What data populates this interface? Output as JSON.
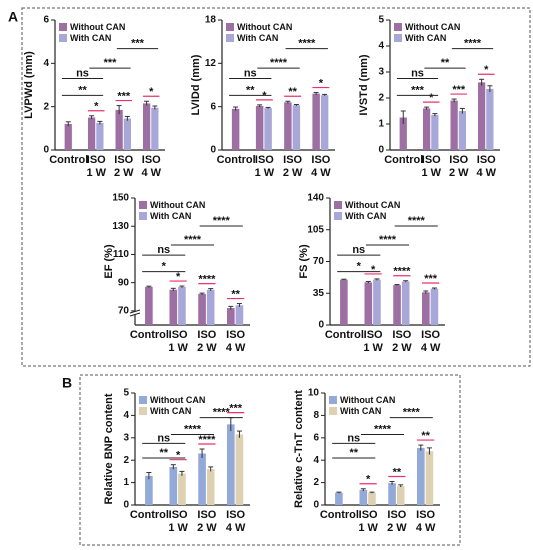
{
  "panels": [
    "A",
    "B"
  ],
  "chart_data": [
    {
      "type": "bar",
      "ylabel": "LVPWd (mm)",
      "ylim": [
        0,
        6
      ],
      "yticks": [
        0,
        2,
        4,
        6
      ],
      "categories": [
        [
          "Control"
        ],
        [
          "ISO",
          "1 W"
        ],
        [
          "ISO",
          "2 W"
        ],
        [
          "ISO",
          "4 W"
        ]
      ],
      "series": [
        {
          "name": "Without CAN",
          "color": "#9d6fa3",
          "values": [
            1.2,
            1.5,
            1.85,
            2.15
          ],
          "errors": [
            0.1,
            0.08,
            0.2,
            0.1
          ]
        },
        {
          "name": "With CAN",
          "color": "#a8a8d8",
          "values": [
            null,
            1.25,
            1.45,
            1.95
          ],
          "errors": [
            null,
            0.07,
            0.1,
            0.08
          ]
        }
      ],
      "brackets": [
        "**",
        "ns",
        "***",
        "***"
      ],
      "pair_marks": [
        "*",
        "***",
        "*"
      ]
    },
    {
      "type": "bar",
      "ylabel": "LVIDd (mm)",
      "ylim": [
        0,
        18
      ],
      "yticks": [
        0,
        6,
        12,
        18
      ],
      "categories": [
        [
          "Control"
        ],
        [
          "ISO",
          "1 W"
        ],
        [
          "ISO",
          "2 W"
        ],
        [
          "ISO",
          "4 W"
        ]
      ],
      "series": [
        {
          "name": "Without CAN",
          "color": "#9d6fa3",
          "values": [
            5.7,
            6.1,
            6.6,
            7.8
          ],
          "errors": [
            0.25,
            0.15,
            0.15,
            0.15
          ]
        },
        {
          "name": "With CAN",
          "color": "#a8a8d8",
          "values": [
            null,
            5.8,
            6.2,
            7.6
          ],
          "errors": [
            null,
            0.1,
            0.1,
            0.1
          ]
        }
      ],
      "brackets": [
        "**",
        "ns",
        "****",
        "****"
      ],
      "pair_marks": [
        "*",
        "**",
        "*"
      ]
    },
    {
      "type": "bar",
      "ylabel": "IVSTd (mm)",
      "ylim": [
        0,
        5
      ],
      "yticks": [
        0,
        1,
        2,
        3,
        4,
        5
      ],
      "categories": [
        [
          "Control"
        ],
        [
          "ISO",
          "1 W"
        ],
        [
          "ISO",
          "2 W"
        ],
        [
          "ISO",
          "4 W"
        ]
      ],
      "series": [
        {
          "name": "Without CAN",
          "color": "#9d6fa3",
          "values": [
            1.25,
            1.6,
            1.9,
            2.6
          ],
          "errors": [
            0.25,
            0.05,
            0.06,
            0.12
          ]
        },
        {
          "name": "With CAN",
          "color": "#a8a8d8",
          "values": [
            null,
            1.35,
            1.5,
            2.35
          ],
          "errors": [
            null,
            0.05,
            0.1,
            0.12
          ]
        }
      ],
      "brackets": [
        "***",
        "ns",
        "**",
        "****"
      ],
      "pair_marks": [
        "*",
        "***",
        "*"
      ]
    },
    {
      "type": "bar",
      "ylabel": "EF (%)",
      "ylim": [
        60,
        150
      ],
      "yticks": [
        70,
        90,
        110,
        130,
        150
      ],
      "axis_break": true,
      "categories": [
        [
          "Control"
        ],
        [
          "ISO",
          "1 W"
        ],
        [
          "ISO",
          "2 W"
        ],
        [
          "ISO",
          "4 W"
        ]
      ],
      "series": [
        {
          "name": "Without CAN",
          "color": "#9d6fa3",
          "values": [
            87,
            85,
            82,
            72
          ],
          "errors": [
            0.5,
            1,
            0.6,
            1.2
          ]
        },
        {
          "name": "With CAN",
          "color": "#a8a8d8",
          "values": [
            null,
            87,
            85,
            74
          ],
          "errors": [
            null,
            0.6,
            0.8,
            1.2
          ]
        }
      ],
      "brackets": [
        "*",
        "ns",
        "****",
        "****"
      ],
      "pair_marks": [
        "*",
        "****",
        "**"
      ]
    },
    {
      "type": "bar",
      "ylabel": "FS (%)",
      "ylim": [
        0,
        140
      ],
      "yticks": [
        0,
        35,
        70,
        105,
        140
      ],
      "categories": [
        [
          "Control"
        ],
        [
          "ISO",
          "1 W"
        ],
        [
          "ISO",
          "2 W"
        ],
        [
          "ISO",
          "4 W"
        ]
      ],
      "series": [
        {
          "name": "Without CAN",
          "color": "#9d6fa3",
          "values": [
            50,
            47,
            44,
            36
          ],
          "errors": [
            0.5,
            1,
            0.6,
            1.5
          ]
        },
        {
          "name": "With CAN",
          "color": "#a8a8d8",
          "values": [
            null,
            50,
            48,
            40
          ],
          "errors": [
            null,
            0.8,
            0.8,
            0.8
          ]
        }
      ],
      "brackets": [
        "*",
        "ns",
        "****",
        "****"
      ],
      "pair_marks": [
        "*",
        "****",
        "***"
      ]
    },
    {
      "type": "bar",
      "ylabel": "Relative BNP content",
      "ylim": [
        0,
        5
      ],
      "yticks": [
        0,
        1,
        2,
        3,
        4,
        5
      ],
      "categories": [
        [
          "Control"
        ],
        [
          "ISO",
          "1 W"
        ],
        [
          "ISO",
          "2 W"
        ],
        [
          "ISO",
          "4 W"
        ]
      ],
      "series": [
        {
          "name": "Without CAN",
          "color": "#93aad8",
          "values": [
            1.3,
            1.7,
            2.3,
            3.6
          ],
          "errors": [
            0.15,
            0.1,
            0.2,
            0.3
          ]
        },
        {
          "name": "With CAN",
          "color": "#ddd1b2",
          "values": [
            null,
            1.4,
            1.6,
            3.15
          ],
          "errors": [
            null,
            0.1,
            0.1,
            0.15
          ]
        }
      ],
      "brackets": [
        "**",
        "ns",
        "****",
        "****"
      ],
      "pair_marks": [
        "*",
        "****",
        "***"
      ]
    },
    {
      "type": "bar",
      "ylabel": "Relative c-TnT content",
      "ylim": [
        0,
        10
      ],
      "yticks": [
        0,
        2,
        4,
        6,
        8,
        10
      ],
      "categories": [
        [
          "Control"
        ],
        [
          "ISO",
          "1 W"
        ],
        [
          "ISO",
          "2 W"
        ],
        [
          "ISO",
          "4 W"
        ]
      ],
      "series": [
        {
          "name": "Without CAN",
          "color": "#93aad8",
          "values": [
            1.1,
            1.35,
            1.95,
            5.1
          ],
          "errors": [
            0.05,
            0.1,
            0.15,
            0.25
          ]
        },
        {
          "name": "With CAN",
          "color": "#ddd1b2",
          "values": [
            null,
            1.1,
            1.7,
            4.8
          ],
          "errors": [
            null,
            0.05,
            0.1,
            0.3
          ]
        }
      ],
      "brackets": [
        "**",
        "ns",
        "****",
        "****"
      ],
      "pair_marks": [
        "*",
        "**",
        "**"
      ]
    }
  ]
}
